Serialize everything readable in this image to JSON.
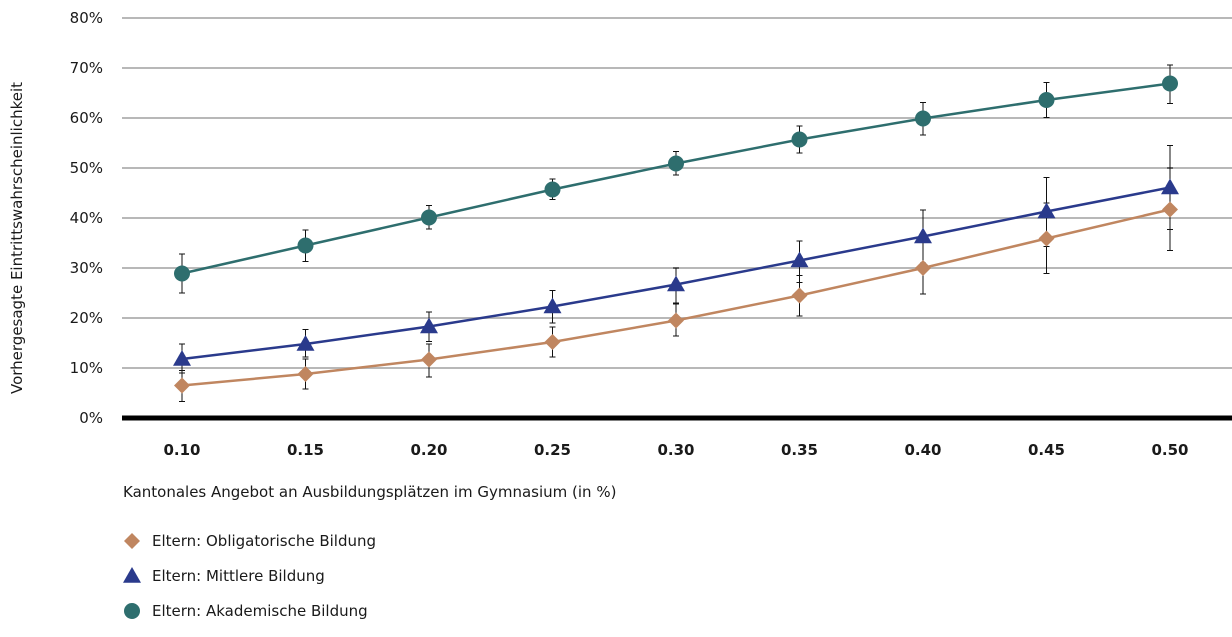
{
  "chart_data": {
    "type": "line",
    "title": "",
    "xlabel": "Kantonales Angebot an Ausbildungsplätzen im Gymnasium (in %)",
    "ylabel": "Vorhergesagte Eintrittswahrscheinlichkeit",
    "x": [
      "0.10",
      "0.15",
      "0.20",
      "0.25",
      "0.30",
      "0.35",
      "0.40",
      "0.45",
      "0.50"
    ],
    "y_ticks": [
      "0%",
      "10%",
      "20%",
      "30%",
      "40%",
      "50%",
      "60%",
      "70%",
      "80%"
    ],
    "ylim": [
      0,
      80
    ],
    "grid": true,
    "legend_position": "bottom-left",
    "series": [
      {
        "name": "Eltern: Obligatorische Bildung",
        "marker": "diamond",
        "color": "#c08660",
        "values": [
          6.5,
          8.8,
          11.7,
          15.2,
          19.5,
          24.5,
          30.0,
          35.9,
          41.7
        ],
        "err_low": [
          3.3,
          5.8,
          8.2,
          12.2,
          16.4,
          20.4,
          24.8,
          28.9,
          33.5
        ],
        "err_high": [
          9.5,
          11.8,
          14.8,
          18.2,
          23.0,
          28.5,
          35.2,
          43.0,
          50.0
        ]
      },
      {
        "name": "Eltern: Mittlere Bildung",
        "marker": "triangle",
        "color": "#2a3a8c",
        "values": [
          11.8,
          14.8,
          18.3,
          22.3,
          26.7,
          31.5,
          36.3,
          41.3,
          46.1
        ],
        "err_low": [
          9.0,
          12.2,
          15.3,
          19.0,
          22.8,
          27.1,
          31.0,
          34.3,
          37.7
        ],
        "err_high": [
          14.8,
          17.7,
          21.2,
          25.5,
          30.0,
          35.4,
          41.6,
          48.1,
          54.5
        ]
      },
      {
        "name": "Eltern: Akademische Bildung",
        "marker": "circle",
        "color": "#2e6e6e",
        "values": [
          28.9,
          34.5,
          40.1,
          45.7,
          50.9,
          55.7,
          59.9,
          63.6,
          66.9
        ],
        "err_low": [
          25.0,
          31.3,
          37.8,
          43.7,
          48.6,
          53.0,
          56.6,
          60.1,
          62.9
        ],
        "err_high": [
          32.8,
          37.6,
          42.5,
          47.8,
          53.3,
          58.4,
          63.1,
          67.1,
          70.6
        ]
      }
    ]
  }
}
